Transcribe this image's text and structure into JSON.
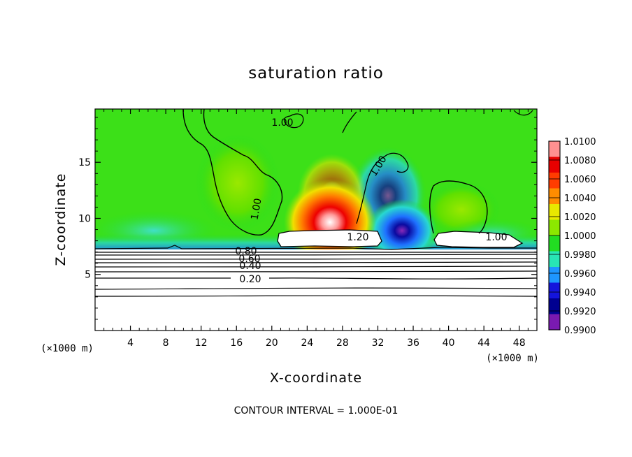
{
  "chart_data": {
    "type": "heatmap",
    "title": "saturation ratio",
    "xlabel": "X-coordinate",
    "ylabel": "Z-coordinate",
    "x_unit_left": "(×1000 m)",
    "x_unit_right": "(×1000 m)",
    "xlim": [
      0,
      50
    ],
    "ylim": [
      0,
      19.75
    ],
    "x_ticks": [
      4,
      8,
      12,
      16,
      20,
      24,
      28,
      32,
      36,
      40,
      44,
      48
    ],
    "y_ticks": [
      5,
      10,
      15
    ],
    "colorbar": {
      "levels": [
        "1.0100",
        "1.0080",
        "1.0060",
        "1.0040",
        "1.0020",
        "1.0000",
        "0.9980",
        "0.9960",
        "0.9940",
        "0.9920",
        "0.9900"
      ],
      "colors": [
        "#ff9090",
        "#e80000",
        "#ff3c00",
        "#ff8c00",
        "#e8e800",
        "#8ce800",
        "#22dd22",
        "#28e6b4",
        "#1e96ff",
        "#1414dc",
        "#000090",
        "#7a1ab0"
      ]
    },
    "background_value": 0.9985,
    "anomalies": [
      {
        "name": "warm-plume-core",
        "x": 26.5,
        "z": 9.6,
        "value": 1.01
      },
      {
        "name": "warm-plume-upper",
        "x": 27,
        "z": 13,
        "value": 1.0035
      },
      {
        "name": "dry-zone",
        "x": 34.5,
        "z": 9.6,
        "value": 0.9925
      },
      {
        "name": "dry-zone-upper",
        "x": 33,
        "z": 13,
        "value": 0.9965
      },
      {
        "name": "green-left-patch",
        "x": 16,
        "z": 13,
        "value": 1.0012
      },
      {
        "name": "green-right-patch",
        "x": 43,
        "z": 11,
        "value": 1.0008
      },
      {
        "name": "surface-blue-band",
        "x": 0,
        "z": 7.8,
        "value": 0.9945
      }
    ],
    "contour_labels": [
      "1.00",
      "1.00",
      "1.00",
      "1.00",
      "1.20",
      "0.80",
      "0.60",
      "0.40",
      "0.20"
    ],
    "contour_interval_text": "CONTOUR INTERVAL = 1.000E-01"
  }
}
